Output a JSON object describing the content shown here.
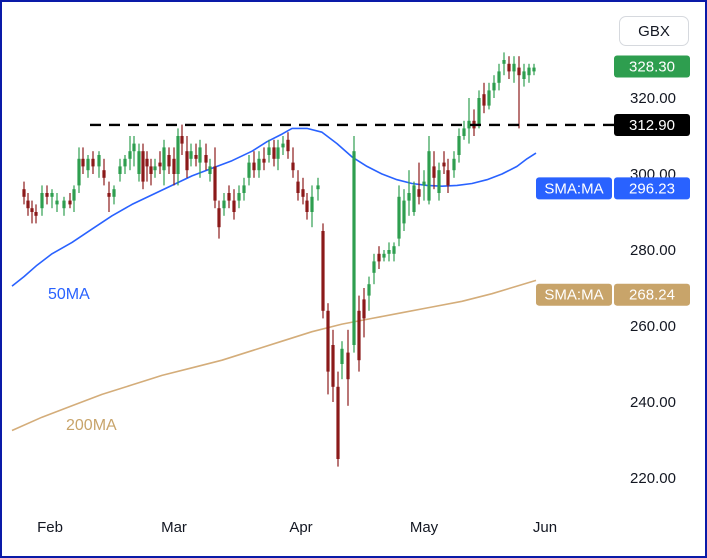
{
  "currency": "GBX",
  "chart_data": {
    "type": "candlestick",
    "ylim": [
      218,
      333
    ],
    "x_months": [
      "Feb",
      "Mar",
      "Apr",
      "May",
      "Jun"
    ],
    "y_ticks": [
      220.0,
      240.0,
      260.0,
      280.0,
      300.0,
      320.0
    ],
    "y_tick_labels": [
      "220.00",
      "240.00",
      "260.00",
      "280.00",
      "300.00",
      "320.00"
    ],
    "last_price": {
      "value": 328.3,
      "label": "328.30",
      "color": "#2e9e4f"
    },
    "resistance": {
      "value": 312.9,
      "label": "312.90",
      "color": "#000000"
    },
    "series": [
      {
        "name": "50MA",
        "color": "#2962ff",
        "values": [
          [
            0,
            270.5
          ],
          [
            12,
            273
          ],
          [
            25,
            276
          ],
          [
            40,
            279
          ],
          [
            60,
            282
          ],
          [
            80,
            285.5
          ],
          [
            100,
            289
          ],
          [
            120,
            292
          ],
          [
            140,
            294.5
          ],
          [
            160,
            297
          ],
          [
            180,
            299.5
          ],
          [
            200,
            301.5
          ],
          [
            220,
            303.5
          ],
          [
            240,
            306
          ],
          [
            255,
            308.5
          ],
          [
            270,
            310.5
          ],
          [
            280,
            312
          ],
          [
            295,
            312
          ],
          [
            310,
            311
          ],
          [
            325,
            308
          ],
          [
            340,
            304.5
          ],
          [
            355,
            302
          ],
          [
            370,
            300
          ],
          [
            385,
            298.5
          ],
          [
            400,
            297.5
          ],
          [
            415,
            297
          ],
          [
            430,
            296.8
          ],
          [
            445,
            297
          ],
          [
            460,
            297.5
          ],
          [
            475,
            298.5
          ],
          [
            490,
            300
          ],
          [
            505,
            302
          ],
          [
            515,
            304
          ],
          [
            524,
            305.5
          ]
        ]
      },
      {
        "name": "200MA",
        "color": "#d4ad7a",
        "values": [
          [
            0,
            232.5
          ],
          [
            30,
            236
          ],
          [
            60,
            239
          ],
          [
            90,
            242
          ],
          [
            120,
            244.5
          ],
          [
            150,
            247
          ],
          [
            180,
            249
          ],
          [
            210,
            251
          ],
          [
            240,
            253.5
          ],
          [
            270,
            256
          ],
          [
            300,
            258.5
          ],
          [
            330,
            260.5
          ],
          [
            360,
            262
          ],
          [
            390,
            263.5
          ],
          [
            420,
            265
          ],
          [
            450,
            266.5
          ],
          [
            480,
            268.5
          ],
          [
            505,
            270.5
          ],
          [
            524,
            272
          ]
        ]
      }
    ],
    "sma_badges": [
      {
        "label": "SMA:MA",
        "value": 296.23,
        "value_label": "296.23",
        "color": "#2962ff"
      },
      {
        "label": "SMA:MA",
        "value": 268.24,
        "value_label": "268.24",
        "color": "#c8a46a"
      }
    ],
    "ma_labels": [
      {
        "text": "50MA",
        "color": "#2962ff"
      },
      {
        "text": "200MA",
        "color": "#c8a46a"
      }
    ],
    "candles": [
      [
        12,
        296,
        298,
        292,
        294
      ],
      [
        16,
        293,
        295,
        289,
        291
      ],
      [
        20,
        291,
        293,
        287,
        290
      ],
      [
        24,
        290,
        292,
        287,
        289
      ],
      [
        30,
        291,
        297,
        289,
        295
      ],
      [
        35,
        295,
        297,
        292,
        294
      ],
      [
        40,
        294,
        296,
        291,
        295
      ],
      [
        45,
        292,
        295,
        290,
        293
      ],
      [
        52,
        291,
        294,
        289,
        293
      ],
      [
        58,
        293,
        295,
        291,
        292
      ],
      [
        62,
        293,
        297,
        290,
        296
      ],
      [
        67,
        297,
        307,
        295,
        304
      ],
      [
        71,
        304,
        307,
        300,
        302
      ],
      [
        76,
        301,
        305,
        299,
        304
      ],
      [
        81,
        304,
        306,
        300,
        302
      ],
      [
        87,
        302,
        306,
        299,
        305
      ],
      [
        92,
        301,
        304,
        297,
        299
      ],
      [
        97,
        295,
        298,
        290,
        294
      ],
      [
        102,
        294,
        297,
        292,
        296
      ],
      [
        108,
        300,
        304,
        298,
        302
      ],
      [
        113,
        302,
        305,
        300,
        304
      ],
      [
        118,
        304,
        310,
        301,
        306
      ],
      [
        122,
        306,
        310,
        302,
        308
      ],
      [
        127,
        300,
        308,
        298,
        306
      ],
      [
        131,
        306,
        308,
        296,
        298
      ],
      [
        135,
        304,
        306,
        298,
        302
      ],
      [
        139,
        302,
        304,
        297,
        300
      ],
      [
        143,
        301,
        304,
        299,
        302
      ],
      [
        148,
        303,
        306,
        300,
        302
      ],
      [
        152,
        301,
        309,
        297,
        307
      ],
      [
        157,
        305,
        307,
        300,
        302
      ],
      [
        162,
        304,
        307,
        297,
        300
      ],
      [
        166,
        300,
        312,
        297,
        310
      ],
      [
        170,
        310,
        313,
        305,
        308
      ],
      [
        175,
        306,
        310,
        299,
        301
      ],
      [
        179,
        304,
        308,
        302,
        306
      ],
      [
        184,
        305,
        308,
        302,
        304
      ],
      [
        188,
        303,
        309,
        299,
        307
      ],
      [
        194,
        305,
        308,
        301,
        303
      ],
      [
        198,
        300,
        304,
        298,
        302
      ],
      [
        203,
        302,
        307,
        291,
        293
      ],
      [
        207,
        291,
        293,
        283,
        286
      ],
      [
        212,
        291,
        295,
        289,
        293
      ],
      [
        217,
        295,
        297,
        291,
        293
      ],
      [
        222,
        293,
        296,
        288,
        290
      ],
      [
        227,
        293,
        297,
        291,
        295
      ],
      [
        232,
        295,
        299,
        293,
        297
      ],
      [
        237,
        299,
        305,
        297,
        303
      ],
      [
        242,
        303,
        306,
        299,
        301
      ],
      [
        247,
        301,
        306,
        299,
        304
      ],
      [
        252,
        304,
        307,
        301,
        303
      ],
      [
        257,
        305,
        309,
        303,
        307
      ],
      [
        262,
        307,
        309,
        302,
        304
      ],
      [
        266,
        304,
        309,
        301,
        307
      ],
      [
        271,
        307,
        310,
        305,
        308
      ],
      [
        276,
        309,
        311,
        304,
        306
      ],
      [
        281,
        303,
        307,
        299,
        301
      ],
      [
        286,
        298,
        301,
        293,
        295
      ],
      [
        291,
        296,
        299,
        292,
        294
      ],
      [
        295,
        293,
        295,
        288,
        290
      ],
      [
        300,
        290,
        297,
        286,
        294
      ],
      [
        306,
        296,
        299,
        293,
        297
      ],
      [
        311,
        285,
        287,
        262,
        264
      ],
      [
        316,
        264,
        266,
        242,
        248
      ],
      [
        321,
        255,
        259,
        240,
        244
      ],
      [
        326,
        244,
        248,
        223,
        225
      ],
      [
        330,
        250,
        256,
        246,
        254
      ],
      [
        336,
        253,
        259,
        239,
        246
      ],
      [
        342,
        255,
        310,
        253,
        306
      ],
      [
        347,
        264,
        268,
        248,
        251
      ],
      [
        352,
        267,
        270,
        257,
        262
      ],
      [
        357,
        268,
        273,
        264,
        271
      ],
      [
        362,
        274,
        279,
        271,
        277
      ],
      [
        367,
        279,
        281,
        275,
        277
      ],
      [
        372,
        278,
        280,
        277,
        279
      ],
      [
        377,
        279,
        282,
        277,
        280
      ],
      [
        382,
        279,
        282,
        277,
        281
      ],
      [
        387,
        283,
        297,
        281,
        294
      ],
      [
        392,
        287,
        296,
        285,
        293
      ],
      [
        397,
        293,
        301,
        289,
        295
      ],
      [
        402,
        290,
        298,
        289,
        297
      ],
      [
        407,
        296,
        303,
        292,
        294
      ],
      [
        412,
        297,
        301,
        293,
        298
      ],
      [
        417,
        293,
        310,
        292,
        306
      ],
      [
        422,
        302,
        306,
        296,
        299
      ],
      [
        427,
        295,
        303,
        293,
        301
      ],
      [
        432,
        303,
        306,
        300,
        302
      ],
      [
        436,
        301,
        304,
        295,
        297
      ],
      [
        442,
        301,
        306,
        299,
        304
      ],
      [
        447,
        305,
        312,
        303,
        310
      ],
      [
        452,
        310,
        314,
        309,
        312
      ],
      [
        457,
        312,
        320,
        308,
        314
      ],
      [
        462,
        314,
        317,
        310,
        312
      ],
      [
        467,
        313,
        322,
        312,
        320
      ],
      [
        472,
        321,
        324,
        316,
        318
      ],
      [
        477,
        318,
        324,
        317,
        322
      ],
      [
        482,
        322,
        326,
        320,
        324
      ],
      [
        487,
        324,
        329,
        322,
        327
      ],
      [
        492,
        329,
        332,
        326,
        330
      ],
      [
        497,
        329,
        331,
        325,
        327
      ],
      [
        502,
        327,
        331,
        324,
        329
      ],
      [
        507,
        328,
        331,
        312,
        326
      ],
      [
        512,
        325,
        329,
        323,
        327
      ],
      [
        517,
        326,
        329,
        324,
        328
      ],
      [
        522,
        327,
        329,
        326,
        328
      ]
    ]
  }
}
